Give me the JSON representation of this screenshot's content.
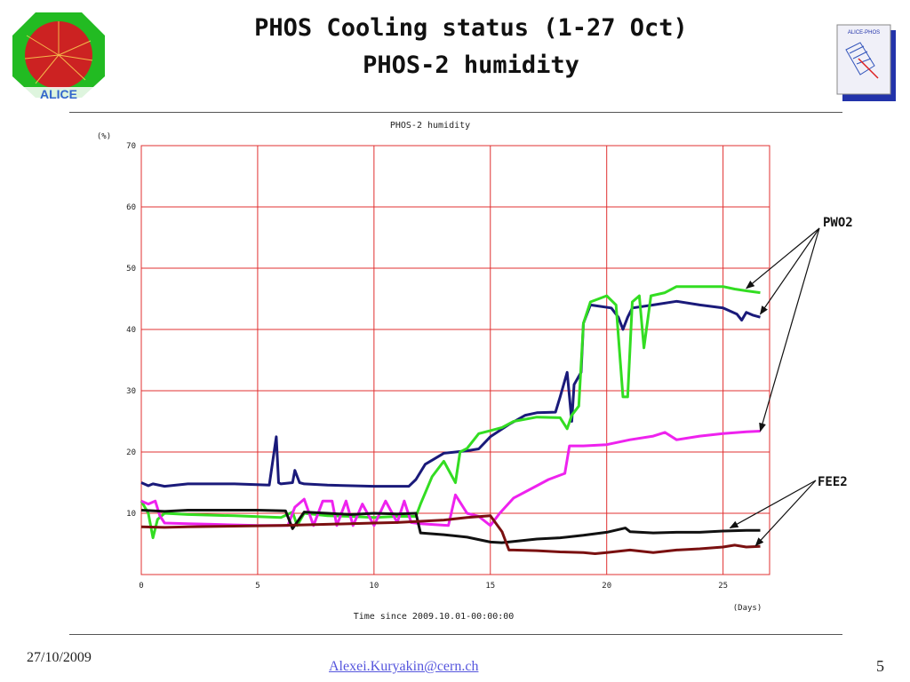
{
  "slide": {
    "title_line1": "PHOS Cooling status (1-27 Oct)",
    "title_line2": "PHOS-2 humidity",
    "logo_left_text": "ALICE",
    "logo_right_text": "ALICE-PHOS"
  },
  "footer": {
    "date": "27/10/2009",
    "email": "Alexei.Kuryakin@cern.ch",
    "page": "5"
  },
  "chart_data": {
    "type": "line",
    "title": "PHOS-2 humidity",
    "ylabel": "(%)",
    "xunit": "(Days)",
    "xlabel": "Time since 2009.10.01-00:00:00",
    "xlim": [
      0,
      27
    ],
    "ylim": [
      0,
      70
    ],
    "xticks": [
      0,
      5,
      10,
      15,
      20,
      25
    ],
    "yticks": [
      10,
      20,
      30,
      40,
      50,
      60,
      70
    ],
    "grid": true,
    "annotations": [
      "PWO2",
      "FEE2"
    ],
    "series": [
      {
        "color": "#1a1a7a",
        "points": [
          [
            0,
            15
          ],
          [
            0.3,
            14.5
          ],
          [
            0.5,
            14.8
          ],
          [
            1,
            14.4
          ],
          [
            2,
            14.8
          ],
          [
            4,
            14.8
          ],
          [
            5.5,
            14.6
          ],
          [
            5.8,
            22.5
          ],
          [
            5.9,
            15
          ],
          [
            6,
            14.8
          ],
          [
            6.5,
            15
          ],
          [
            6.6,
            17
          ],
          [
            6.8,
            15
          ],
          [
            7,
            14.8
          ],
          [
            8,
            14.6
          ],
          [
            10,
            14.4
          ],
          [
            11.5,
            14.4
          ],
          [
            11.8,
            15.5
          ],
          [
            12.2,
            18
          ],
          [
            13,
            19.8
          ],
          [
            14,
            20.2
          ],
          [
            14.5,
            20.5
          ],
          [
            15,
            22.5
          ],
          [
            15.8,
            24.5
          ],
          [
            16.5,
            26
          ],
          [
            17,
            26.4
          ],
          [
            17.8,
            26.5
          ],
          [
            18,
            29
          ],
          [
            18.3,
            33
          ],
          [
            18.5,
            25
          ],
          [
            18.6,
            31
          ],
          [
            18.9,
            33
          ],
          [
            19,
            41
          ],
          [
            19.3,
            44
          ],
          [
            20.2,
            43.5
          ],
          [
            20.5,
            42
          ],
          [
            20.7,
            40
          ],
          [
            20.9,
            42
          ],
          [
            21.1,
            43.5
          ],
          [
            22,
            44
          ],
          [
            23,
            44.6
          ],
          [
            24,
            44
          ],
          [
            25,
            43.5
          ],
          [
            25.6,
            42.5
          ],
          [
            25.8,
            41.5
          ],
          [
            26,
            42.8
          ],
          [
            26.3,
            42.3
          ],
          [
            26.6,
            42
          ]
        ]
      },
      {
        "color": "#33dd22",
        "points": [
          [
            0,
            12
          ],
          [
            0.3,
            10
          ],
          [
            0.5,
            6
          ],
          [
            0.7,
            9
          ],
          [
            1,
            10
          ],
          [
            2,
            9.8
          ],
          [
            4,
            9.6
          ],
          [
            6,
            9.3
          ],
          [
            6.5,
            10.2
          ],
          [
            6.7,
            8
          ],
          [
            7,
            10
          ],
          [
            8,
            9.6
          ],
          [
            9,
            9.5
          ],
          [
            10,
            9.3
          ],
          [
            11,
            9.5
          ],
          [
            11.8,
            9.5
          ],
          [
            12,
            11.5
          ],
          [
            12.5,
            16
          ],
          [
            13,
            18.5
          ],
          [
            13.5,
            15
          ],
          [
            13.7,
            20
          ],
          [
            14,
            20.6
          ],
          [
            14.5,
            23
          ],
          [
            15,
            23.5
          ],
          [
            15.5,
            24
          ],
          [
            16,
            25
          ],
          [
            17,
            25.7
          ],
          [
            18,
            25.6
          ],
          [
            18.3,
            23.8
          ],
          [
            18.5,
            26
          ],
          [
            18.8,
            27.5
          ],
          [
            19,
            41
          ],
          [
            19.3,
            44.5
          ],
          [
            20,
            45.5
          ],
          [
            20.4,
            44
          ],
          [
            20.7,
            29
          ],
          [
            20.9,
            29
          ],
          [
            21.1,
            44.5
          ],
          [
            21.4,
            45.5
          ],
          [
            21.6,
            37
          ],
          [
            21.9,
            45.5
          ],
          [
            22.5,
            46
          ],
          [
            23,
            47
          ],
          [
            24,
            47
          ],
          [
            25,
            47
          ],
          [
            25.5,
            46.6
          ],
          [
            26,
            46.3
          ],
          [
            26.6,
            46
          ]
        ]
      },
      {
        "color": "#ee22ee",
        "points": [
          [
            0,
            12
          ],
          [
            0.3,
            11.5
          ],
          [
            0.6,
            12
          ],
          [
            0.8,
            9.6
          ],
          [
            1,
            8.4
          ],
          [
            2,
            8.3
          ],
          [
            3,
            8.2
          ],
          [
            5,
            8
          ],
          [
            6.3,
            8
          ],
          [
            6.6,
            11
          ],
          [
            7,
            12.3
          ],
          [
            7.4,
            8
          ],
          [
            7.8,
            12
          ],
          [
            8.2,
            12
          ],
          [
            8.4,
            8
          ],
          [
            8.8,
            12
          ],
          [
            9.1,
            8
          ],
          [
            9.5,
            11.5
          ],
          [
            10,
            8
          ],
          [
            10.5,
            12
          ],
          [
            11,
            8.5
          ],
          [
            11.3,
            12
          ],
          [
            11.6,
            8.5
          ],
          [
            12,
            8.3
          ],
          [
            13.2,
            8
          ],
          [
            13.5,
            13
          ],
          [
            14,
            10
          ],
          [
            14.5,
            9.5
          ],
          [
            15,
            8
          ],
          [
            15.4,
            10
          ],
          [
            16,
            12.5
          ],
          [
            17,
            14.5
          ],
          [
            17.5,
            15.5
          ],
          [
            18.2,
            16.5
          ],
          [
            18.4,
            21
          ],
          [
            19,
            21
          ],
          [
            20,
            21.2
          ],
          [
            21,
            22
          ],
          [
            22,
            22.6
          ],
          [
            22.5,
            23.2
          ],
          [
            23,
            22
          ],
          [
            24,
            22.6
          ],
          [
            25,
            23
          ],
          [
            26,
            23.3
          ],
          [
            26.6,
            23.4
          ]
        ]
      },
      {
        "color": "#111111",
        "points": [
          [
            0,
            10.5
          ],
          [
            1,
            10.3
          ],
          [
            2,
            10.5
          ],
          [
            5,
            10.5
          ],
          [
            6.2,
            10.4
          ],
          [
            6.5,
            7.5
          ],
          [
            7,
            10.2
          ],
          [
            8,
            10
          ],
          [
            9,
            9.8
          ],
          [
            10,
            10
          ],
          [
            11,
            9.9
          ],
          [
            11.8,
            10
          ],
          [
            12,
            6.8
          ],
          [
            13,
            6.5
          ],
          [
            14,
            6.1
          ],
          [
            15,
            5.3
          ],
          [
            15.5,
            5.2
          ],
          [
            16,
            5.4
          ],
          [
            17,
            5.8
          ],
          [
            18,
            6
          ],
          [
            19,
            6.4
          ],
          [
            20,
            6.9
          ],
          [
            20.8,
            7.6
          ],
          [
            21,
            7
          ],
          [
            22,
            6.8
          ],
          [
            23,
            6.9
          ],
          [
            24,
            6.9
          ],
          [
            25,
            7.1
          ],
          [
            26,
            7.2
          ],
          [
            26.6,
            7.2
          ]
        ]
      },
      {
        "color": "#7a1010",
        "points": [
          [
            0,
            7.8
          ],
          [
            1,
            7.7
          ],
          [
            2,
            7.8
          ],
          [
            4,
            7.9
          ],
          [
            6,
            8
          ],
          [
            8,
            8.2
          ],
          [
            10,
            8.4
          ],
          [
            11,
            8.5
          ],
          [
            12,
            8.7
          ],
          [
            13,
            8.9
          ],
          [
            14,
            9.3
          ],
          [
            15,
            9.6
          ],
          [
            15.5,
            7
          ],
          [
            15.8,
            4
          ],
          [
            16,
            4
          ],
          [
            17,
            3.9
          ],
          [
            18,
            3.7
          ],
          [
            19,
            3.6
          ],
          [
            19.5,
            3.4
          ],
          [
            20,
            3.6
          ],
          [
            21,
            4
          ],
          [
            22,
            3.6
          ],
          [
            23,
            4
          ],
          [
            24,
            4.2
          ],
          [
            25,
            4.5
          ],
          [
            25.5,
            4.8
          ],
          [
            26,
            4.5
          ],
          [
            26.6,
            4.6
          ]
        ]
      }
    ]
  }
}
